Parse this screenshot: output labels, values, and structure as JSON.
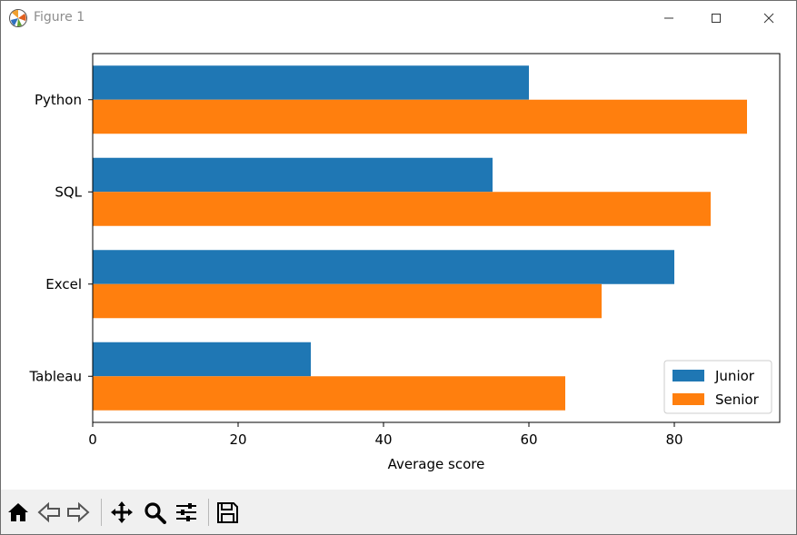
{
  "window": {
    "title": "Figure 1"
  },
  "toolbar": {
    "buttons": [
      "home-icon",
      "back-icon",
      "forward-icon",
      "pan-icon",
      "zoom-icon",
      "configure-subplots-icon",
      "save-icon"
    ]
  },
  "colors": {
    "junior": "#1f77b4",
    "senior": "#ff7f0e"
  },
  "chart_data": {
    "type": "bar",
    "orientation": "horizontal",
    "categories": [
      "Python",
      "SQL",
      "Excel",
      "Tableau"
    ],
    "series": [
      {
        "name": "Junior",
        "values": [
          60,
          55,
          80,
          30
        ]
      },
      {
        "name": "Senior",
        "values": [
          90,
          85,
          70,
          65
        ]
      }
    ],
    "title": "",
    "xlabel": "Average score",
    "ylabel": "",
    "xlim": [
      0,
      94.5
    ],
    "xticks": [
      "0",
      "20",
      "40",
      "60",
      "80"
    ],
    "grid": false,
    "legend_position": "lower right"
  }
}
